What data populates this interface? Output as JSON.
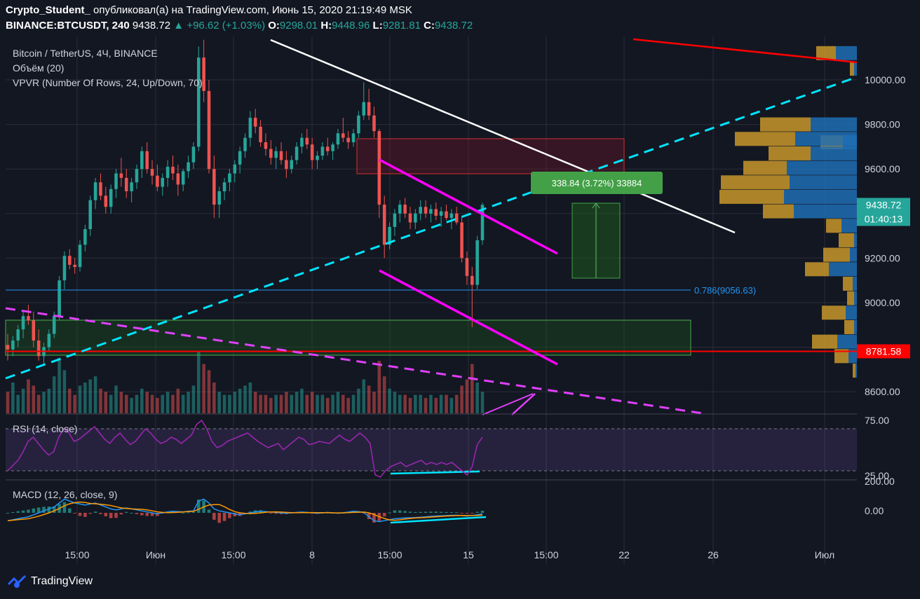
{
  "header": {
    "author": "Crypto_Student_",
    "published": "опубликовал(а) на TradingView.com, Июнь 15, 2020 21:19:49 MSK",
    "symbol": "BINANCE:BTCUSDT, 240",
    "last": "9438.72",
    "change": "+96.62 (+1.03%)",
    "o_label": "O:",
    "o": "9298.01",
    "h_label": "H:",
    "h": "9448.96",
    "l_label": "L:",
    "l": "9281.81",
    "c_label": "C:",
    "c": "9438.72"
  },
  "legends": {
    "main": "Bitcoin / TetherUS, 4Ч, BINANCE",
    "volume": "Объём (20)",
    "vpvr": "VPVR (Number Of Rows, 24, Up/Down, 70)",
    "rsi": "RSI (14, close)",
    "macd": "MACD (12, 26, close, 9)"
  },
  "annotations": {
    "fib": "0.786(9056.63)",
    "measure": "338.84 (3.72%) 33884"
  },
  "price_badges": {
    "current": "9438.72",
    "countdown": "01:40:13",
    "support": "8781.58"
  },
  "colors": {
    "up": "#26a69a",
    "down": "#ef5350",
    "bg": "#131722",
    "grid": "#2a2e39",
    "wedge": "#ff00ff",
    "trend": "#00e5ff",
    "resistance": "#ffffff",
    "level": "#ff0000",
    "vp_up": "#1e6fb4",
    "vp_down": "#c8962a",
    "rsi_line": "#9c27b0",
    "macd_line": "#2196f3",
    "signal_line": "#ff9800",
    "brand": "#2962ff"
  },
  "chart_data": {
    "type": "candlestick",
    "price_axis": {
      "ticks": [
        8600,
        8800,
        9000,
        9200,
        9400,
        9600,
        9800,
        10000
      ],
      "tick_labels": [
        "8600.00",
        "9000.00",
        "9200.00",
        "9400.00",
        "9600.00",
        "9800.00",
        "10000.00"
      ],
      "range": [
        8490,
        10180
      ]
    },
    "rsi_axis": {
      "tick_labels": [
        "75.00",
        "25.00"
      ],
      "levels": [
        70,
        30
      ]
    },
    "macd_axis": {
      "tick_labels": [
        "200.00",
        "0.00"
      ]
    },
    "time_axis": [
      "15:00",
      "Июн",
      "15:00",
      "8",
      "15:00",
      "15",
      "15:00",
      "22",
      "26",
      "Июл"
    ],
    "candles_ohlc_approx": [
      [
        8810,
        8860,
        8740,
        8790
      ],
      [
        8790,
        8850,
        8760,
        8830
      ],
      [
        8830,
        8900,
        8800,
        8880
      ],
      [
        8880,
        8960,
        8840,
        8940
      ],
      [
        8940,
        8990,
        8900,
        8920
      ],
      [
        8920,
        8960,
        8800,
        8830
      ],
      [
        8830,
        8880,
        8740,
        8760
      ],
      [
        8760,
        8820,
        8720,
        8800
      ],
      [
        8800,
        8880,
        8780,
        8860
      ],
      [
        8860,
        8960,
        8840,
        8940
      ],
      [
        8940,
        9120,
        8920,
        9100
      ],
      [
        9100,
        9230,
        9060,
        9210
      ],
      [
        9210,
        9240,
        9150,
        9170
      ],
      [
        9170,
        9200,
        9130,
        9160
      ],
      [
        9160,
        9280,
        9140,
        9260
      ],
      [
        9260,
        9350,
        9230,
        9330
      ],
      [
        9330,
        9480,
        9300,
        9460
      ],
      [
        9460,
        9560,
        9420,
        9540
      ],
      [
        9540,
        9580,
        9460,
        9480
      ],
      [
        9480,
        9520,
        9400,
        9430
      ],
      [
        9430,
        9530,
        9400,
        9510
      ],
      [
        9510,
        9600,
        9470,
        9580
      ],
      [
        9580,
        9650,
        9520,
        9560
      ],
      [
        9560,
        9600,
        9470,
        9500
      ],
      [
        9500,
        9560,
        9450,
        9540
      ],
      [
        9540,
        9620,
        9510,
        9600
      ],
      [
        9600,
        9700,
        9560,
        9680
      ],
      [
        9680,
        9720,
        9580,
        9600
      ],
      [
        9600,
        9640,
        9530,
        9570
      ],
      [
        9570,
        9620,
        9500,
        9520
      ],
      [
        9520,
        9580,
        9480,
        9560
      ],
      [
        9560,
        9640,
        9520,
        9610
      ],
      [
        9610,
        9660,
        9550,
        9580
      ],
      [
        9580,
        9620,
        9480,
        9530
      ],
      [
        9530,
        9600,
        9500,
        9590
      ],
      [
        9590,
        9660,
        9560,
        9630
      ],
      [
        9630,
        9720,
        9600,
        9700
      ],
      [
        9700,
        10150,
        9680,
        10100
      ],
      [
        10100,
        10180,
        9900,
        9950
      ],
      [
        9950,
        10000,
        9580,
        9600
      ],
      [
        9600,
        9660,
        9380,
        9440
      ],
      [
        9440,
        9520,
        9380,
        9500
      ],
      [
        9500,
        9560,
        9460,
        9540
      ],
      [
        9540,
        9600,
        9500,
        9580
      ],
      [
        9580,
        9640,
        9540,
        9620
      ],
      [
        9620,
        9700,
        9580,
        9680
      ],
      [
        9680,
        9760,
        9650,
        9740
      ],
      [
        9740,
        9860,
        9700,
        9830
      ],
      [
        9830,
        9870,
        9760,
        9790
      ],
      [
        9790,
        9820,
        9700,
        9720
      ],
      [
        9720,
        9760,
        9660,
        9690
      ],
      [
        9690,
        9730,
        9620,
        9650
      ],
      [
        9650,
        9700,
        9600,
        9680
      ],
      [
        9680,
        9720,
        9620,
        9640
      ],
      [
        9640,
        9680,
        9560,
        9600
      ],
      [
        9600,
        9660,
        9580,
        9640
      ],
      [
        9640,
        9720,
        9620,
        9700
      ],
      [
        9700,
        9760,
        9670,
        9740
      ],
      [
        9740,
        9780,
        9690,
        9710
      ],
      [
        9710,
        9740,
        9600,
        9640
      ],
      [
        9640,
        9680,
        9600,
        9660
      ],
      [
        9660,
        9720,
        9640,
        9700
      ],
      [
        9700,
        9740,
        9660,
        9680
      ],
      [
        9680,
        9720,
        9640,
        9710
      ],
      [
        9710,
        9780,
        9690,
        9760
      ],
      [
        9760,
        9830,
        9720,
        9740
      ],
      [
        9740,
        9770,
        9690,
        9720
      ],
      [
        9720,
        9780,
        9700,
        9760
      ],
      [
        9760,
        9860,
        9740,
        9840
      ],
      [
        9840,
        9990,
        9820,
        9900
      ],
      [
        9900,
        9960,
        9820,
        9840
      ],
      [
        9840,
        9880,
        9740,
        9770
      ],
      [
        9770,
        9780,
        9380,
        9440
      ],
      [
        9440,
        9480,
        9200,
        9260
      ],
      [
        9260,
        9360,
        9240,
        9340
      ],
      [
        9340,
        9420,
        9300,
        9400
      ],
      [
        9400,
        9460,
        9360,
        9440
      ],
      [
        9440,
        9470,
        9380,
        9400
      ],
      [
        9400,
        9430,
        9330,
        9360
      ],
      [
        9360,
        9420,
        9330,
        9400
      ],
      [
        9400,
        9460,
        9370,
        9430
      ],
      [
        9430,
        9460,
        9380,
        9400
      ],
      [
        9400,
        9440,
        9360,
        9420
      ],
      [
        9420,
        9450,
        9370,
        9390
      ],
      [
        9390,
        9430,
        9340,
        9410
      ],
      [
        9410,
        9440,
        9370,
        9380
      ],
      [
        9380,
        9420,
        9330,
        9400
      ],
      [
        9400,
        9430,
        9350,
        9360
      ],
      [
        9360,
        9390,
        9180,
        9200
      ],
      [
        9200,
        9230,
        9080,
        9120
      ],
      [
        9120,
        9160,
        8890,
        9080
      ],
      [
        9080,
        9300,
        9060,
        9280
      ],
      [
        9280,
        9449,
        9260,
        9439
      ]
    ],
    "volume_relative": [
      0.35,
      0.5,
      0.3,
      0.4,
      0.55,
      0.45,
      0.3,
      0.35,
      0.4,
      0.6,
      0.9,
      0.7,
      0.4,
      0.3,
      0.45,
      0.5,
      0.55,
      0.6,
      0.4,
      0.35,
      0.3,
      0.45,
      0.35,
      0.3,
      0.25,
      0.3,
      0.4,
      0.35,
      0.3,
      0.25,
      0.3,
      0.35,
      0.3,
      0.4,
      0.3,
      0.35,
      0.45,
      1.0,
      0.8,
      0.7,
      0.5,
      0.35,
      0.3,
      0.3,
      0.35,
      0.4,
      0.45,
      0.5,
      0.35,
      0.3,
      0.3,
      0.25,
      0.3,
      0.3,
      0.35,
      0.3,
      0.35,
      0.4,
      0.3,
      0.35,
      0.3,
      0.3,
      0.25,
      0.3,
      0.35,
      0.3,
      0.25,
      0.3,
      0.4,
      0.55,
      0.45,
      0.35,
      0.85,
      0.6,
      0.4,
      0.35,
      0.3,
      0.3,
      0.25,
      0.3,
      0.3,
      0.25,
      0.3,
      0.25,
      0.3,
      0.3,
      0.25,
      0.3,
      0.45,
      0.55,
      0.8,
      0.5,
      0.35
    ],
    "drawings": {
      "fib_level": 9056.63,
      "support_level": 8781.58,
      "current_price": 9438.72,
      "measure_from": 9100,
      "measure_to": 9438.72
    }
  }
}
